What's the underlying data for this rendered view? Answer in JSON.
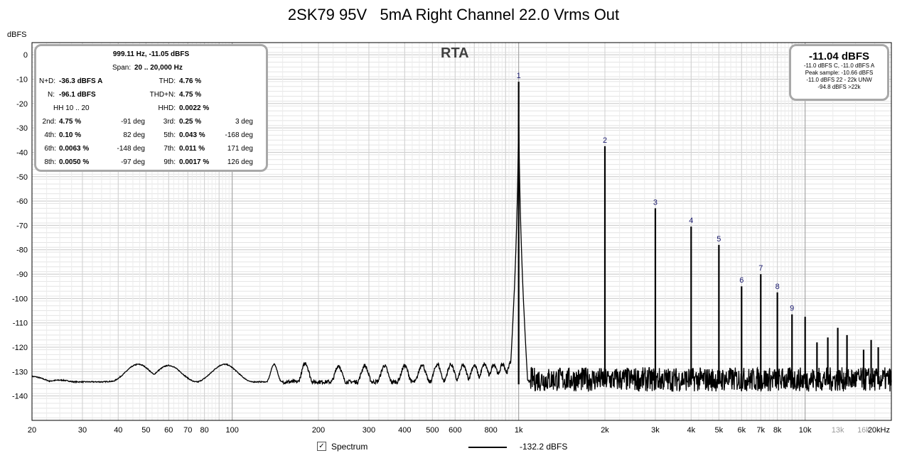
{
  "chart_data": {
    "type": "line",
    "title": "2SK79 95V   5mA Right Channel 22.0 Vrms Out",
    "ylabel": "dBFS",
    "xlabel": "",
    "xscale": "log",
    "xlim": [
      20,
      20000
    ],
    "ylim": [
      -150,
      5
    ],
    "grid": true,
    "x_ticks": [
      {
        "v": 20,
        "label": "20"
      },
      {
        "v": 30,
        "label": "30"
      },
      {
        "v": 40,
        "label": "40"
      },
      {
        "v": 50,
        "label": "50"
      },
      {
        "v": 60,
        "label": "60"
      },
      {
        "v": 70,
        "label": "70"
      },
      {
        "v": 80,
        "label": "80"
      },
      {
        "v": 100,
        "label": "100"
      },
      {
        "v": 200,
        "label": "200"
      },
      {
        "v": 300,
        "label": "300"
      },
      {
        "v": 400,
        "label": "400"
      },
      {
        "v": 500,
        "label": "500"
      },
      {
        "v": 600,
        "label": "600"
      },
      {
        "v": 800,
        "label": "800"
      },
      {
        "v": 1000,
        "label": "1k"
      },
      {
        "v": 2000,
        "label": "2k"
      },
      {
        "v": 3000,
        "label": "3k"
      },
      {
        "v": 4000,
        "label": "4k"
      },
      {
        "v": 5000,
        "label": "5k"
      },
      {
        "v": 6000,
        "label": "6k"
      },
      {
        "v": 7000,
        "label": "7k"
      },
      {
        "v": 8000,
        "label": "8k"
      },
      {
        "v": 10000,
        "label": "10k"
      },
      {
        "v": 13000,
        "label": "13k",
        "light": true
      },
      {
        "v": 16000,
        "label": "16k",
        "light": true
      },
      {
        "v": 20000,
        "label": "20kHz"
      }
    ],
    "y_ticks": [
      0,
      -10,
      -20,
      -30,
      -40,
      -50,
      -60,
      -70,
      -80,
      -90,
      -100,
      -110,
      -120,
      -130,
      -140
    ],
    "series": [
      {
        "name": "Spectrum",
        "color": "#000000",
        "peaks": [
          {
            "x": 1000,
            "y": -11.05,
            "label": "1"
          },
          {
            "x": 2000,
            "y": -37.5,
            "label": "2"
          },
          {
            "x": 3000,
            "y": -63,
            "label": "3"
          },
          {
            "x": 4000,
            "y": -70.5,
            "label": "4"
          },
          {
            "x": 5000,
            "y": -78,
            "label": "5"
          },
          {
            "x": 6000,
            "y": -95,
            "label": "6"
          },
          {
            "x": 7000,
            "y": -90,
            "label": "7"
          },
          {
            "x": 8000,
            "y": -97.5,
            "label": "8"
          },
          {
            "x": 9000,
            "y": -106.5,
            "label": "9"
          },
          {
            "x": 10000,
            "y": -107.5,
            "label": ""
          },
          {
            "x": 11000,
            "y": -118,
            "label": ""
          },
          {
            "x": 12000,
            "y": -116,
            "label": ""
          },
          {
            "x": 13000,
            "y": -112,
            "label": ""
          },
          {
            "x": 14000,
            "y": -115,
            "label": ""
          },
          {
            "x": 16000,
            "y": -121,
            "label": ""
          },
          {
            "x": 17000,
            "y": -117,
            "label": ""
          },
          {
            "x": 18000,
            "y": -120,
            "label": ""
          }
        ],
        "noise_bumps": [
          {
            "x": 20,
            "y": -132
          },
          {
            "x": 25,
            "y": -133.5
          },
          {
            "x": 31,
            "y": -136
          },
          {
            "x": 38,
            "y": -134
          },
          {
            "x": 47,
            "y": -127
          },
          {
            "x": 53,
            "y": -133
          },
          {
            "x": 60,
            "y": -127.5
          },
          {
            "x": 66,
            "y": -134
          },
          {
            "x": 80,
            "y": -135.5
          },
          {
            "x": 94,
            "y": -127
          },
          {
            "x": 108,
            "y": -134.5
          },
          {
            "x": 140,
            "y": -127
          },
          {
            "x": 180,
            "y": -126.5
          },
          {
            "x": 235,
            "y": -127.5
          },
          {
            "x": 290,
            "y": -127.5
          },
          {
            "x": 340,
            "y": -127.5
          },
          {
            "x": 400,
            "y": -127.5
          },
          {
            "x": 460,
            "y": -127
          },
          {
            "x": 520,
            "y": -127
          },
          {
            "x": 580,
            "y": -127
          },
          {
            "x": 640,
            "y": -127.5
          },
          {
            "x": 700,
            "y": -127.5
          },
          {
            "x": 760,
            "y": -127
          },
          {
            "x": 820,
            "y": -127
          },
          {
            "x": 880,
            "y": -127
          },
          {
            "x": 940,
            "y": -126
          }
        ],
        "noise_floor": -132.2
      }
    ],
    "legend": "bottom-center",
    "legend_value": "-132.2 dBFS"
  },
  "overlay_label": "RTA",
  "measurements": {
    "header": "999.11 Hz, -11.05 dBFS",
    "span_label": "Span:",
    "span_value": "20 .. 20,000 Hz",
    "nd_label": "N+D:",
    "nd_value": "-36.3 dBFS A",
    "thd_label": "THD:",
    "thd_value": "4.76 %",
    "n_label": "N:",
    "n_value": "-96.1 dBFS",
    "thdn_label": "THD+N:",
    "thdn_value": "4.75 %",
    "hh_label": "HH 10 .. 20",
    "hhd_label": "HHD:",
    "hhd_value": "0.0022 %",
    "harmonics": [
      {
        "label": "2nd:",
        "value": "4.75 %",
        "phase": "-91 deg"
      },
      {
        "label": "3rd:",
        "value": "0.25 %",
        "phase": "3 deg"
      },
      {
        "label": "4th:",
        "value": "0.10 %",
        "phase": "82 deg"
      },
      {
        "label": "5th:",
        "value": "0.043 %",
        "phase": "-168 deg"
      },
      {
        "label": "6th:",
        "value": "0.0063 %",
        "phase": "-148 deg"
      },
      {
        "label": "7th:",
        "value": "0.011 %",
        "phase": "171 deg"
      },
      {
        "label": "8th:",
        "value": "0.0050 %",
        "phase": "-97 deg"
      },
      {
        "label": "9th:",
        "value": "0.0017 %",
        "phase": "126 deg"
      }
    ]
  },
  "level_meter": {
    "value": "-11.04 dBFS",
    "lines": [
      "-11.0 dBFS C, -11.0 dBFS A",
      "Peak sample: -10.66 dBFS",
      "-11.0 dBFS 22 - 22k UNW",
      "-94.8 dBFS >22k"
    ]
  },
  "legend": {
    "checkbox_mark": "✓",
    "series_label": "Spectrum",
    "value": "-132.2 dBFS"
  }
}
